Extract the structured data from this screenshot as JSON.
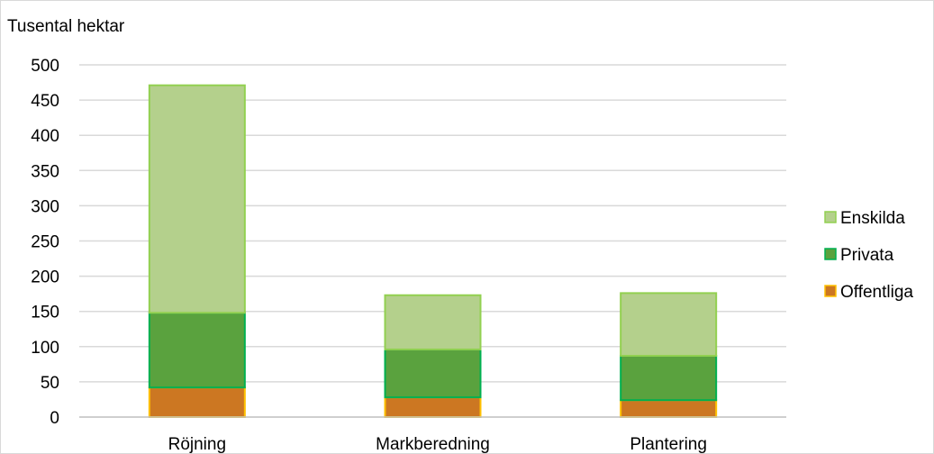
{
  "chart_data": {
    "type": "bar",
    "stacked": true,
    "ylabel": "Tusental hektar",
    "xlabel": "",
    "categories": [
      "Röjning",
      "Markberedning",
      "Plantering"
    ],
    "ylim": [
      0,
      500
    ],
    "yticks": [
      0,
      50,
      100,
      150,
      200,
      250,
      300,
      350,
      400,
      450,
      500
    ],
    "grid": true,
    "legend_position": "right",
    "series": [
      {
        "name": "Offentliga",
        "values": [
          42,
          28,
          24
        ],
        "fill": "#cc7722",
        "stroke": "#ffc000"
      },
      {
        "name": "Privata",
        "values": [
          106,
          68,
          63
        ],
        "fill": "#5aa23e",
        "stroke": "#00b050"
      },
      {
        "name": "Enskilda",
        "values": [
          323,
          77,
          89
        ],
        "fill": "#b4d08c",
        "stroke": "#92d050"
      }
    ],
    "legend_order": [
      "Enskilda",
      "Privata",
      "Offentliga"
    ]
  }
}
